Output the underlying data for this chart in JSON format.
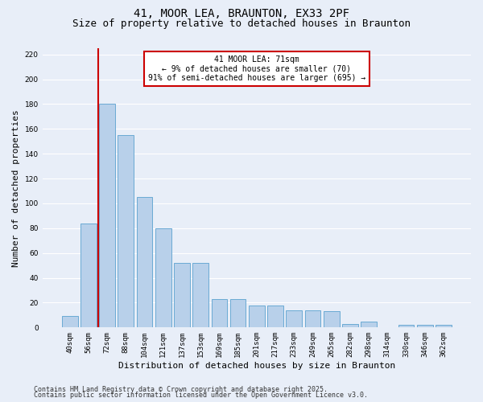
{
  "title": "41, MOOR LEA, BRAUNTON, EX33 2PF",
  "subtitle": "Size of property relative to detached houses in Braunton",
  "xlabel": "Distribution of detached houses by size in Braunton",
  "ylabel": "Number of detached properties",
  "categories": [
    "40sqm",
    "56sqm",
    "72sqm",
    "88sqm",
    "104sqm",
    "121sqm",
    "137sqm",
    "153sqm",
    "169sqm",
    "185sqm",
    "201sqm",
    "217sqm",
    "233sqm",
    "249sqm",
    "265sqm",
    "282sqm",
    "298sqm",
    "314sqm",
    "330sqm",
    "346sqm",
    "362sqm"
  ],
  "values": [
    9,
    84,
    180,
    155,
    105,
    80,
    52,
    52,
    23,
    23,
    18,
    18,
    14,
    14,
    13,
    3,
    5,
    0,
    2,
    2,
    2
  ],
  "bar_color": "#b8d0ea",
  "bar_edge_color": "#6aaad4",
  "background_color": "#e8eef8",
  "grid_color": "#ffffff",
  "vline_color": "#cc0000",
  "vline_pos": 1.5,
  "annotation_text": "41 MOOR LEA: 71sqm\n← 9% of detached houses are smaller (70)\n91% of semi-detached houses are larger (695) →",
  "annotation_box_facecolor": "#ffffff",
  "annotation_box_edgecolor": "#cc0000",
  "ylim": [
    0,
    225
  ],
  "yticks": [
    0,
    20,
    40,
    60,
    80,
    100,
    120,
    140,
    160,
    180,
    200,
    220
  ],
  "footer_line1": "Contains HM Land Registry data © Crown copyright and database right 2025.",
  "footer_line2": "Contains public sector information licensed under the Open Government Licence v3.0.",
  "title_fontsize": 10,
  "subtitle_fontsize": 9,
  "xlabel_fontsize": 8,
  "ylabel_fontsize": 8,
  "tick_fontsize": 6.5,
  "annotation_fontsize": 7,
  "footer_fontsize": 6
}
